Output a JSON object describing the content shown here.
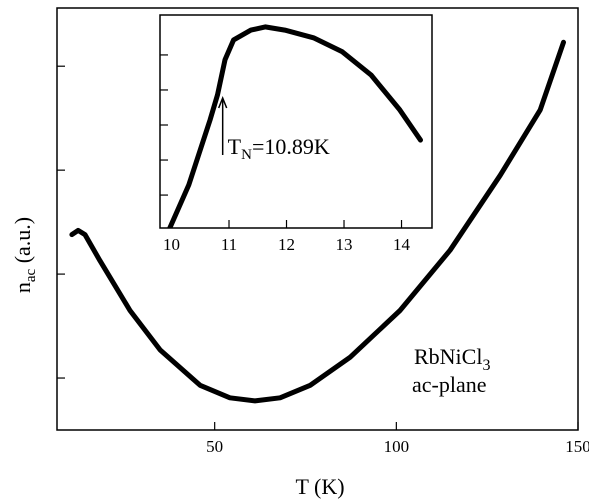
{
  "chart_data": [
    {
      "type": "line",
      "xlabel": "T (K)",
      "ylabel": {
        "main": "n",
        "subscript": "ac",
        "suffix": " (a.u.)"
      },
      "label": {
        "line1_main": "RbNiCl",
        "line1_subscript": "3",
        "line2": "ac-plane"
      },
      "x": [
        10.7,
        12.4,
        14.3,
        18.4,
        26.7,
        35.0,
        46.0,
        54.2,
        61.1,
        68.0,
        76.3,
        87.3,
        101.0,
        114.8,
        128.6,
        139.6,
        146.0
      ],
      "series": [
        {
          "color": "#000000",
          "values": [
            1.88,
            1.92,
            1.88,
            1.63,
            1.15,
            0.77,
            0.43,
            0.31,
            0.28,
            0.31,
            0.43,
            0.7,
            1.15,
            1.73,
            2.45,
            3.08,
            3.73
          ]
        }
      ],
      "xlim": [
        6.6,
        150
      ],
      "xticks": [
        50,
        100,
        150
      ],
      "ylim": [
        0,
        4.06
      ],
      "yticks": [
        0.5,
        1.5,
        2.5,
        3.5
      ]
    },
    {
      "type": "line",
      "annotation": {
        "main": "T",
        "subscript": "N",
        "suffix": "=10.89K",
        "x": 10.89
      },
      "x": [
        9.97,
        10.3,
        10.67,
        10.8,
        10.93,
        11.08,
        11.38,
        11.63,
        11.97,
        12.47,
        12.97,
        13.47,
        13.97,
        14.33
      ],
      "series": [
        {
          "color": "#000000",
          "values": [
            0.06,
            1.29,
            3.14,
            3.86,
            4.86,
            5.43,
            5.71,
            5.8,
            5.71,
            5.49,
            5.09,
            4.43,
            3.43,
            2.57
          ]
        }
      ],
      "xlim": [
        9.8,
        14.53
      ],
      "xticks": [
        10,
        11,
        12,
        13,
        14
      ],
      "ylim": [
        0.06,
        6.14
      ],
      "yticks": [
        1,
        2,
        3,
        4,
        5
      ]
    }
  ]
}
